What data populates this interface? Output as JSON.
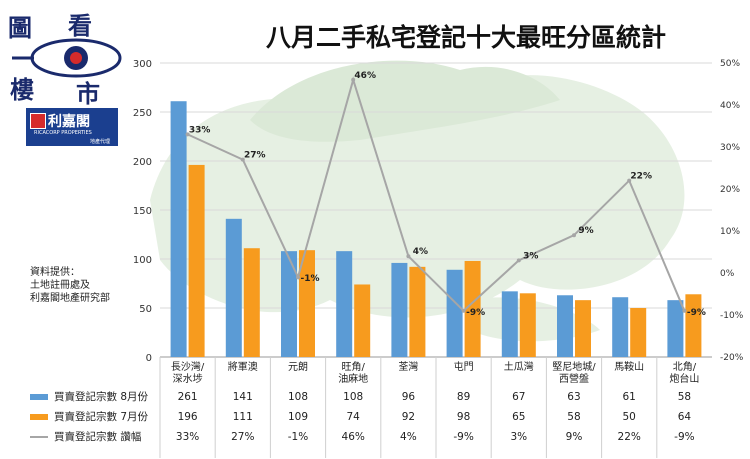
{
  "logo": {
    "chars": [
      "圖",
      "看",
      "樓",
      "市"
    ]
  },
  "brand": {
    "name": "利嘉閣",
    "sub_en": "RICACORP PROPERTIES",
    "sub_cn": "地產代理",
    "badge_color": "#1b3f8f"
  },
  "source_note": [
    "資料提供：",
    "土地註冊處及",
    "利嘉閣地產研究部"
  ],
  "colors": {
    "aug": "#5b9bd5",
    "jul": "#f79b1e",
    "change": "#a6a6a6",
    "map": "#e6f0e3"
  },
  "chart_data": {
    "type": "bar",
    "title": "八月二手私宅登記十大最旺分區統計",
    "categories": [
      "長沙灣/深水埗",
      "將軍澳",
      "元朗",
      "旺角/油麻地",
      "荃灣",
      "屯門",
      "土瓜灣",
      "堅尼地城/西營盤",
      "馬鞍山",
      "北角/炮台山"
    ],
    "category_lines": [
      [
        "長沙灣/",
        "深水埗"
      ],
      [
        "將軍澳"
      ],
      [
        "元朗"
      ],
      [
        "旺角/",
        "油麻地"
      ],
      [
        "荃灣"
      ],
      [
        "屯門"
      ],
      [
        "土瓜灣"
      ],
      [
        "堅尼地城/",
        "西營盤"
      ],
      [
        "馬鞍山"
      ],
      [
        "北角/",
        "炮台山"
      ]
    ],
    "series": [
      {
        "name": "買賣登記宗數 8月份",
        "kind": "bar",
        "values": [
          261,
          141,
          108,
          108,
          96,
          89,
          67,
          63,
          61,
          58
        ]
      },
      {
        "name": "買賣登記宗數 7月份",
        "kind": "bar",
        "values": [
          196,
          111,
          109,
          74,
          92,
          98,
          65,
          58,
          50,
          64
        ]
      },
      {
        "name": "買賣登記宗數 讚幅",
        "kind": "line",
        "axis": "right",
        "values": [
          33,
          27,
          -1,
          46,
          4,
          -9,
          3,
          9,
          22,
          -9
        ]
      }
    ],
    "change_labels": [
      "33%",
      "27%",
      "-1%",
      "46%",
      "4%",
      "-9%",
      "3%",
      "9%",
      "22%",
      "-9%"
    ],
    "y_left": {
      "min": 0,
      "max": 300,
      "ticks": [
        "0",
        "50",
        "100",
        "150",
        "200",
        "250",
        "300"
      ]
    },
    "y_right": {
      "min": -20,
      "max": 50,
      "ticks": [
        "-20%",
        "-10%",
        "0%",
        "10%",
        "20%",
        "30%",
        "40%",
        "50%"
      ]
    },
    "legend": "table-bottom"
  }
}
